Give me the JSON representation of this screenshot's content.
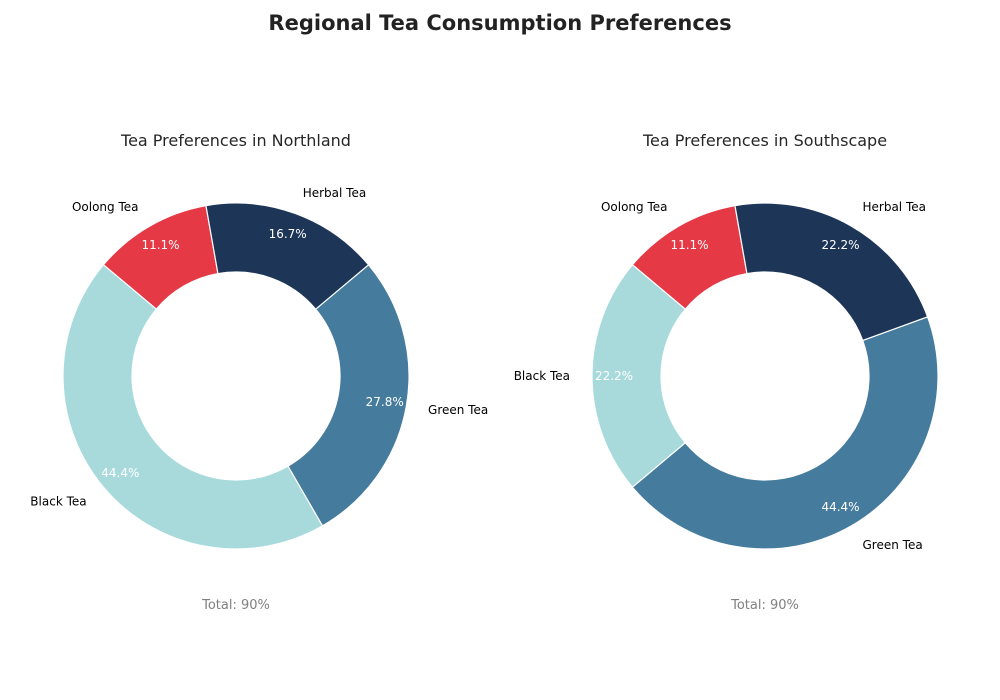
{
  "title": "Regional Tea Consumption Preferences",
  "chart_data": [
    {
      "type": "pie",
      "variant": "donut",
      "title": "Tea Preferences in Northland",
      "categories": [
        "Oolong Tea",
        "Black Tea",
        "Green Tea",
        "Herbal Tea"
      ],
      "values": [
        10,
        40,
        25,
        15
      ],
      "percent_labels": [
        "11.1%",
        "44.4%",
        "27.8%",
        "16.7%"
      ],
      "colors": [
        "#e63946",
        "#a8dadc",
        "#457b9d",
        "#1d3557"
      ],
      "start_angle_deg": 100,
      "direction": "counterclockwise",
      "total_label": "Total: 90%"
    },
    {
      "type": "pie",
      "variant": "donut",
      "title": "Tea Preferences in Southscape",
      "categories": [
        "Oolong Tea",
        "Black Tea",
        "Green Tea",
        "Herbal Tea"
      ],
      "values": [
        10,
        20,
        40,
        20
      ],
      "percent_labels": [
        "11.1%",
        "22.2%",
        "44.4%",
        "22.2%"
      ],
      "colors": [
        "#e63946",
        "#a8dadc",
        "#457b9d",
        "#1d3557"
      ],
      "start_angle_deg": 100,
      "direction": "counterclockwise",
      "total_label": "Total: 90%"
    }
  ]
}
